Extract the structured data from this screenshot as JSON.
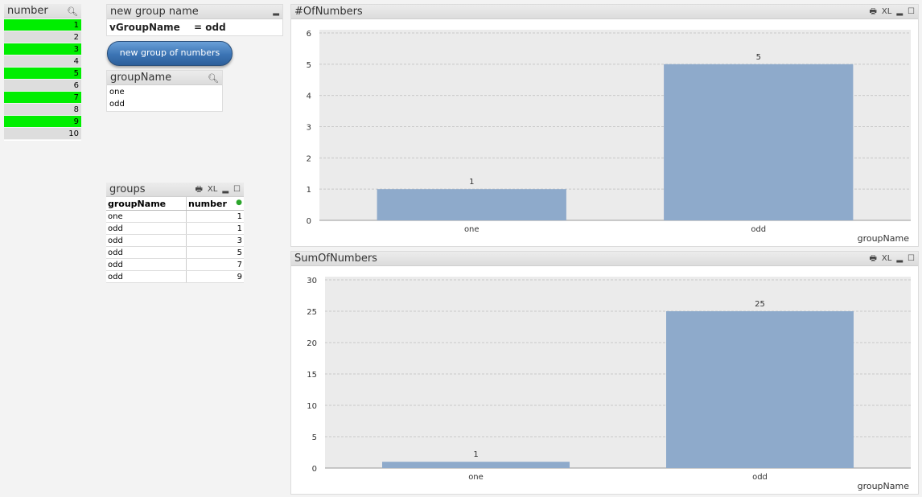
{
  "number_listbox": {
    "title": "number",
    "items": [
      {
        "label": "1",
        "selected": true
      },
      {
        "label": "2",
        "selected": false
      },
      {
        "label": "3",
        "selected": true
      },
      {
        "label": "4",
        "selected": false
      },
      {
        "label": "5",
        "selected": true
      },
      {
        "label": "6",
        "selected": false
      },
      {
        "label": "7",
        "selected": true
      },
      {
        "label": "8",
        "selected": false
      },
      {
        "label": "9",
        "selected": true
      },
      {
        "label": "10",
        "selected": false
      }
    ]
  },
  "input_box": {
    "title": "new group name",
    "variable": "vGroupName",
    "value": "= odd"
  },
  "button": {
    "label": "new group of numbers"
  },
  "groupname_listbox": {
    "title": "groupName",
    "items": [
      "one",
      "odd"
    ]
  },
  "groups_table": {
    "title": "groups",
    "headers": [
      "groupName",
      "number"
    ],
    "rows": [
      [
        "one",
        "1"
      ],
      [
        "odd",
        "1"
      ],
      [
        "odd",
        "3"
      ],
      [
        "odd",
        "5"
      ],
      [
        "odd",
        "7"
      ],
      [
        "odd",
        "9"
      ]
    ]
  },
  "colors": {
    "bar": "#8eaacb",
    "selected": "#00ee00",
    "plot_bg": "#ebebeb"
  },
  "chart_data": [
    {
      "type": "bar",
      "title": "#OfNumbers",
      "categories": [
        "one",
        "odd"
      ],
      "values": [
        1,
        5
      ],
      "xlabel": "groupName",
      "ylim": [
        0,
        6
      ],
      "yticks": [
        "0",
        "1",
        "2",
        "3",
        "4",
        "5",
        "6"
      ],
      "grid": true
    },
    {
      "type": "bar",
      "title": "SumOfNumbers",
      "categories": [
        "one",
        "odd"
      ],
      "values": [
        1,
        25
      ],
      "xlabel": "groupName",
      "ylim": [
        0,
        30
      ],
      "yticks": [
        "0",
        "5",
        "10",
        "15",
        "20",
        "25",
        "30"
      ],
      "grid": true
    }
  ]
}
